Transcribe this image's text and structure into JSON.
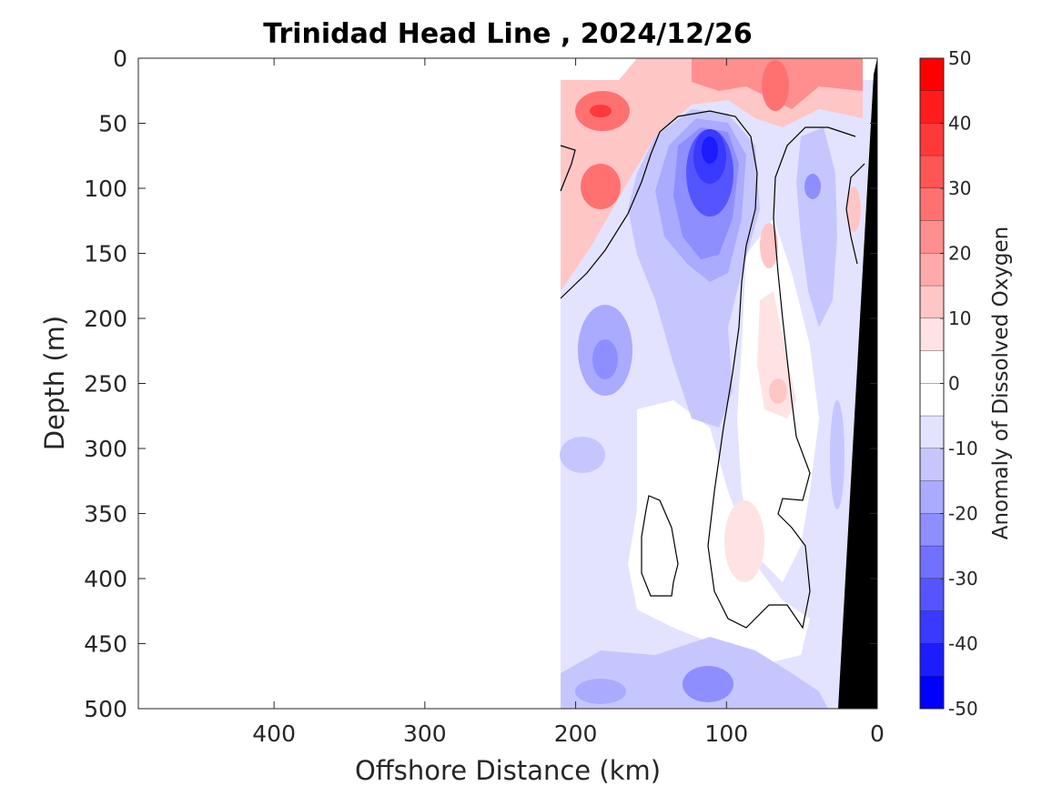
{
  "chart_data": {
    "type": "heatmap",
    "subtype": "filled-contour-section",
    "title": "Trinidad Head Line , 2024/12/26",
    "xlabel": "Offshore Distance (km)",
    "ylabel": "Depth (m)",
    "colorbar_label": "Anomaly of Dissolved Oxygen",
    "x_direction": "reversed",
    "y_direction": "reversed",
    "xlim": [
      490,
      0
    ],
    "ylim": [
      0,
      500
    ],
    "x_ticks": [
      400,
      300,
      200,
      100,
      0
    ],
    "y_ticks": [
      0,
      50,
      100,
      150,
      200,
      250,
      300,
      350,
      400,
      450,
      500
    ],
    "colorbar_range": [
      -50,
      50
    ],
    "colorbar_ticks": [
      50,
      40,
      30,
      20,
      10,
      0,
      -10,
      -20,
      -30,
      -40,
      -50
    ],
    "colorbar_levels": [
      {
        "lo": 45,
        "hi": 50,
        "color": "#ff0000"
      },
      {
        "lo": 40,
        "hi": 45,
        "color": "#ff1c1c"
      },
      {
        "lo": 35,
        "hi": 40,
        "color": "#ff3939"
      },
      {
        "lo": 30,
        "hi": 35,
        "color": "#ff5555"
      },
      {
        "lo": 25,
        "hi": 30,
        "color": "#ff7171"
      },
      {
        "lo": 20,
        "hi": 25,
        "color": "#ff8e8e"
      },
      {
        "lo": 15,
        "hi": 20,
        "color": "#ffaaaa"
      },
      {
        "lo": 10,
        "hi": 15,
        "color": "#ffc6c6"
      },
      {
        "lo": 5,
        "hi": 10,
        "color": "#ffe3e3"
      },
      {
        "lo": 0,
        "hi": 5,
        "color": "#ffffff"
      },
      {
        "lo": -5,
        "hi": 0,
        "color": "#ffffff"
      },
      {
        "lo": -10,
        "hi": -5,
        "color": "#e3e3ff"
      },
      {
        "lo": -15,
        "hi": -10,
        "color": "#c6c6ff"
      },
      {
        "lo": -20,
        "hi": -15,
        "color": "#aaaaff"
      },
      {
        "lo": -25,
        "hi": -20,
        "color": "#8e8eff"
      },
      {
        "lo": -30,
        "hi": -25,
        "color": "#7171ff"
      },
      {
        "lo": -35,
        "hi": -30,
        "color": "#5555ff"
      },
      {
        "lo": -40,
        "hi": -35,
        "color": "#3939ff"
      },
      {
        "lo": -45,
        "hi": -40,
        "color": "#1c1cff"
      },
      {
        "lo": -50,
        "hi": -45,
        "color": "#0000ff"
      }
    ],
    "data_extent_x": [
      210,
      0
    ],
    "zero_contour_color": "#000000",
    "bathymetry_color": "#000000",
    "bathymetry": [
      [
        0,
        0
      ],
      [
        0,
        500
      ],
      [
        25,
        500
      ],
      [
        2,
        10
      ],
      [
        0,
        0
      ]
    ],
    "anomaly_features": [
      {
        "x": 185,
        "depth": 40,
        "value": 32
      },
      {
        "x": 180,
        "depth": 100,
        "value": 28
      },
      {
        "x": 80,
        "depth": 20,
        "value": 22
      },
      {
        "x": 40,
        "depth": 10,
        "value": 15
      },
      {
        "x": 112,
        "depth": 70,
        "value": -46
      },
      {
        "x": 120,
        "depth": 130,
        "value": -25
      },
      {
        "x": 45,
        "depth": 100,
        "value": -22
      },
      {
        "x": 185,
        "depth": 230,
        "value": -20
      },
      {
        "x": 110,
        "depth": 485,
        "value": -23
      },
      {
        "x": 165,
        "depth": 480,
        "value": -14
      },
      {
        "x": 80,
        "depth": 380,
        "value": 6
      },
      {
        "x": 68,
        "depth": 255,
        "value": 12
      },
      {
        "x": 78,
        "depth": 140,
        "value": 14
      },
      {
        "x": 25,
        "depth": 140,
        "value": 10
      }
    ]
  }
}
